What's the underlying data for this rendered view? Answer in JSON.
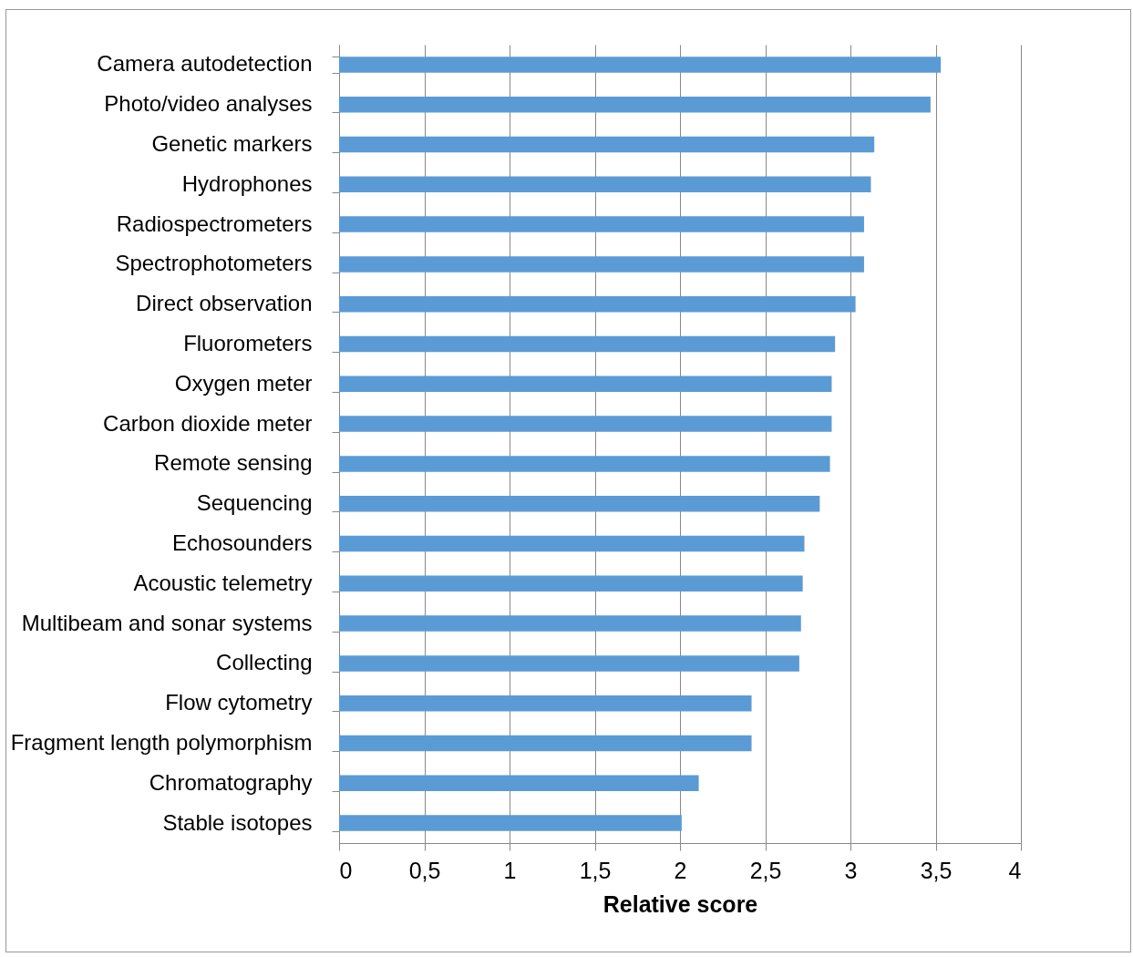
{
  "chart_data": {
    "type": "bar",
    "orientation": "horizontal",
    "xlabel": "Relative score",
    "categories": [
      "Camera autodetection",
      "Photo/video analyses",
      "Genetic markers",
      "Hydrophones",
      "Radiospectrometers",
      "Spectrophotometers",
      "Direct observation",
      "Fluorometers",
      "Oxygen meter",
      "Carbon dioxide meter",
      "Remote sensing",
      "Sequencing",
      "Echosounders",
      "Acoustic telemetry",
      "Multibeam and sonar systems",
      "Collecting",
      "Flow cytometry",
      "Fragment length polymorphism",
      "Chromatography",
      "Stable isotopes"
    ],
    "values": [
      3.53,
      3.47,
      3.14,
      3.12,
      3.08,
      3.08,
      3.03,
      2.91,
      2.89,
      2.89,
      2.88,
      2.82,
      2.73,
      2.72,
      2.71,
      2.7,
      2.42,
      2.42,
      2.11,
      2.01
    ],
    "color": "#5b9bd5",
    "xlim": [
      0,
      4
    ],
    "xticks": [
      0,
      {
        "value": 0.5,
        "label": "0,5"
      },
      1,
      {
        "value": 1.5,
        "label": "1,5"
      },
      2,
      {
        "value": 2.5,
        "label": "2,5"
      },
      3,
      {
        "value": 3.5,
        "label": "3,5"
      },
      4
    ],
    "grid": "x"
  }
}
